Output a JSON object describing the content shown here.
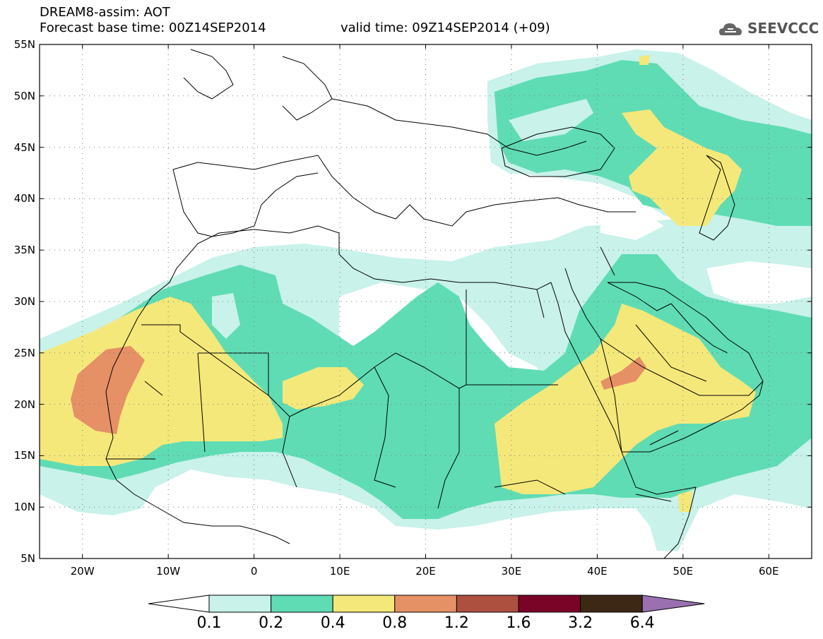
{
  "header": {
    "title": "DREAM8-assim: AOT",
    "base_time": "Forecast base time: 00Z14SEP2014",
    "valid_time": "valid time: 09Z14SEP2014 (+09)",
    "logo_text": "SEEVCCC"
  },
  "map": {
    "lon_range": [
      -25,
      65
    ],
    "lat_range": [
      5,
      55
    ],
    "grid": "dotted",
    "lat_labels": [
      "55N",
      "50N",
      "45N",
      "40N",
      "35N",
      "30N",
      "25N",
      "20N",
      "15N",
      "10N",
      "5N"
    ],
    "lon_labels": [
      "20W",
      "10W",
      "0",
      "10E",
      "20E",
      "30E",
      "40E",
      "50E",
      "60E"
    ]
  },
  "colorbar": {
    "labels": [
      "0.1",
      "0.2",
      "0.4",
      "0.8",
      "1.2",
      "1.6",
      "3.2",
      "6.4"
    ],
    "colors": [
      "#ffffff",
      "#c8f2ea",
      "#5fdcb4",
      "#f5e87a",
      "#e69066",
      "#ad5040",
      "#7a0428",
      "#3c2814",
      "#9a70b0"
    ]
  }
}
